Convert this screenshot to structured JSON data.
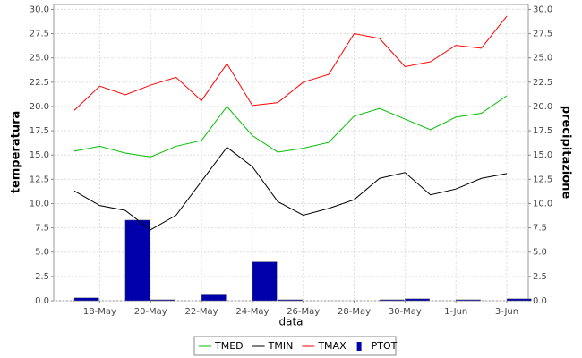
{
  "chart_data": {
    "type": "line",
    "x_label": "data",
    "y_label": "temperatura",
    "y2_label": "precipitazione",
    "categories": [
      null,
      "18-May",
      null,
      "20-May",
      null,
      "22-May",
      null,
      "24-May",
      null,
      "26-May",
      null,
      "28-May",
      null,
      "30-May",
      null,
      "1-Jun",
      null,
      "3-Jun"
    ],
    "series": [
      {
        "name": "TMED",
        "color": "#00c000",
        "type": "line",
        "values": [
          15.4,
          15.9,
          15.2,
          14.8,
          15.9,
          16.5,
          20.0,
          17.0,
          15.3,
          15.7,
          16.3,
          19.0,
          19.8,
          18.7,
          17.6,
          18.9,
          19.3,
          21.1
        ]
      },
      {
        "name": "TMIN",
        "color": "#000000",
        "type": "line",
        "values": [
          11.3,
          9.8,
          9.3,
          7.3,
          8.8,
          12.3,
          15.8,
          13.8,
          10.2,
          8.8,
          9.5,
          10.4,
          12.6,
          13.2,
          10.9,
          11.5,
          12.6,
          13.1
        ]
      },
      {
        "name": "TMAX",
        "color": "#ff0000",
        "type": "line",
        "values": [
          19.6,
          22.1,
          21.2,
          22.2,
          23.0,
          20.6,
          24.4,
          20.1,
          20.4,
          22.5,
          23.3,
          27.5,
          27.0,
          24.1,
          24.6,
          26.3,
          26.0,
          29.3
        ]
      },
      {
        "name": "PTOT",
        "color": "#0000aa",
        "type": "bar",
        "axis": "y2",
        "values": [
          0.3,
          0,
          8.3,
          0.1,
          0,
          0.6,
          0,
          4.0,
          0.1,
          0,
          0,
          0,
          0.1,
          0.2,
          0,
          0.1,
          0,
          0.2
        ]
      }
    ],
    "ylim": [
      0,
      30.5
    ],
    "yticks": [
      {
        "value": 0,
        "label": "0.0"
      },
      {
        "value": 2.5,
        "label": "2.5"
      },
      {
        "value": 5,
        "label": "5.0"
      },
      {
        "value": 7.5,
        "label": "7.5"
      },
      {
        "value": 10,
        "label": "10.0"
      },
      {
        "value": 12.5,
        "label": "12.5"
      },
      {
        "value": 15,
        "label": "15.0"
      },
      {
        "value": 17.5,
        "label": "17.5"
      },
      {
        "value": 20,
        "label": "20.0"
      },
      {
        "value": 22.5,
        "label": "22.5"
      },
      {
        "value": 25,
        "label": "25.0"
      },
      {
        "value": 27.5,
        "label": "27.5"
      },
      {
        "value": 30,
        "label": "30.0"
      }
    ],
    "y2lim": [
      0,
      30.5
    ],
    "y2ticks": [
      {
        "value": 0,
        "label": "0.0"
      },
      {
        "value": 2.5,
        "label": "2.5"
      },
      {
        "value": 5,
        "label": "5.0"
      },
      {
        "value": 7.5,
        "label": "7.5"
      },
      {
        "value": 10,
        "label": "10.0"
      },
      {
        "value": 12.5,
        "label": "12.5"
      },
      {
        "value": 15,
        "label": "15.0"
      },
      {
        "value": 17.5,
        "label": "17.5"
      },
      {
        "value": 20,
        "label": "20.0"
      },
      {
        "value": 22.5,
        "label": "22.5"
      },
      {
        "value": 25,
        "label": "25.0"
      },
      {
        "value": 27.5,
        "label": "27.5"
      },
      {
        "value": 30,
        "label": "30.0"
      }
    ],
    "grid": true,
    "legend": "bottom"
  }
}
